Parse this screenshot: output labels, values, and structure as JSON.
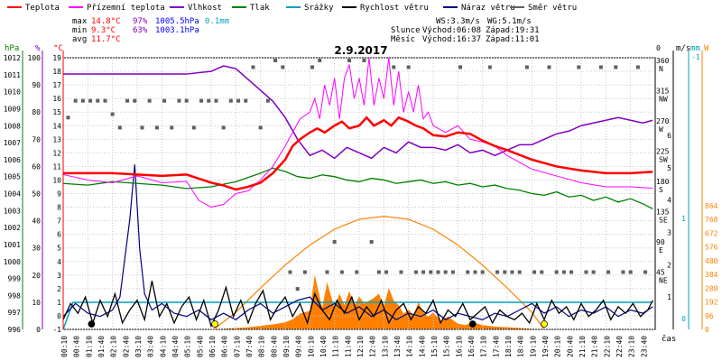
{
  "chart_data": {
    "type": "line",
    "title": "2.9.2017",
    "xlabel": "čas",
    "legend": {
      "placement": "top",
      "items": [
        {
          "label": "Teplota",
          "color": "#ff0000"
        },
        {
          "label": "Přízemní teplota",
          "color": "#ff00ff"
        },
        {
          "label": "Vlhkost",
          "color": "#8000c0"
        },
        {
          "label": "Tlak",
          "color": "#008000"
        },
        {
          "label": "Srážky",
          "color": "#00a0c0"
        },
        {
          "label": "Rychlost větru",
          "color": "#000000"
        },
        {
          "label": "Náraz větru",
          "color": "#000080"
        },
        {
          "label": "Směr větru",
          "color": "#606060"
        }
      ]
    },
    "stats": {
      "labels": [
        "max",
        "min",
        "avg"
      ],
      "temp": [
        "14.8°C",
        "9.3°C",
        "11.7°C"
      ],
      "hum": [
        "97%",
        "63%",
        ""
      ],
      "press": [
        "1005.5hPa",
        "1003.1hPa",
        ""
      ],
      "rain": [
        "0.1mm",
        "",
        ""
      ]
    },
    "wind": {
      "ws": "WS:3.3m/s",
      "wg": "WG:5.1m/s"
    },
    "sun": {
      "label": "Slunce",
      "rise": "Východ:06:08",
      "set": "Západ:19:31"
    },
    "moon": {
      "label": "Měsíc",
      "rise": "Východ:16:37",
      "set": "Západ:11:01"
    },
    "axes": {
      "left_units": [
        "hPa",
        "%",
        "°C"
      ],
      "pressure_ticks": [
        "1012",
        "1011",
        "1010",
        "1009",
        "1008",
        "1007",
        "1006",
        "1005",
        "1004",
        "1003",
        "1002",
        "1001",
        "1000",
        "999",
        "998",
        "997",
        "996"
      ],
      "humidity_ticks": [
        "100",
        "90",
        "80",
        "70",
        "60",
        "50",
        "40",
        "30",
        "20",
        "10",
        "0"
      ],
      "temp_ticks": [
        "19",
        "18",
        "17",
        "16",
        "15",
        "14",
        "13",
        "12",
        "11",
        "10",
        "9",
        "8",
        "7",
        "6",
        "5",
        "4",
        "3",
        "2",
        "1",
        "0",
        "-1"
      ],
      "direction_ticks": [
        "360",
        "N",
        "315",
        "NW",
        "270",
        "W",
        "225",
        "SW",
        "180",
        "S",
        "135",
        "SE",
        "90",
        "E",
        "45",
        "NE"
      ],
      "right_units": [
        "m/s",
        "mm",
        "W"
      ],
      "wind_ticks": [
        "6",
        "5",
        "4",
        "3",
        "2",
        "1"
      ],
      "rain_ticks": [
        "1",
        "0"
      ],
      "solar_ticks": [
        "864",
        "768",
        "672",
        "576",
        "480",
        "384",
        "288",
        "192",
        "96",
        "0"
      ],
      "top_markers": [
        "0",
        "-1"
      ],
      "ylim_temp": [
        -1,
        19
      ],
      "ylim_pressure": [
        996,
        1012
      ],
      "ylim_humidity": [
        0,
        100
      ],
      "ylim_wind": [
        0,
        6
      ],
      "ylim_solar": [
        0,
        864
      ],
      "grid": true
    },
    "time_labels": [
      "00:10",
      "00:40",
      "01:10",
      "01:40",
      "02:10",
      "02:40",
      "03:10",
      "03:40",
      "04:10",
      "04:40",
      "05:10",
      "05:40",
      "06:10",
      "06:40",
      "07:10",
      "07:40",
      "08:10",
      "08:40",
      "09:10",
      "09:40",
      "10:10",
      "10:40",
      "11:10",
      "11:40",
      "12:10",
      "12:40",
      "13:10",
      "13:40",
      "14:10",
      "14:40",
      "15:10",
      "15:40",
      "16:10",
      "16:40",
      "17:10",
      "17:40",
      "18:10",
      "18:40",
      "19:10",
      "19:40",
      "20:10",
      "20:40",
      "21:10",
      "21:40",
      "22:10",
      "22:40",
      "23:10",
      "23:40"
    ],
    "series": [
      {
        "name": "Teplota",
        "color": "#ff0000",
        "axis": "temp",
        "x": [
          0,
          1,
          2,
          3,
          4,
          5,
          6,
          6.5,
          7,
          7.5,
          8,
          8.5,
          9,
          9.3,
          9.6,
          10,
          10.3,
          10.6,
          11,
          11.3,
          11.6,
          12,
          12.3,
          12.6,
          13,
          13.3,
          13.6,
          14,
          14.3,
          14.6,
          15,
          15.5,
          16,
          16.5,
          17,
          17.5,
          18,
          19,
          20,
          21,
          22,
          23,
          23.9
        ],
        "y": [
          10.5,
          10.5,
          10.5,
          10.4,
          10.3,
          10.4,
          9.8,
          9.6,
          9.3,
          9.5,
          9.8,
          10.5,
          11.5,
          12.5,
          13.0,
          13.5,
          13.8,
          13.5,
          14.0,
          14.3,
          13.8,
          14.0,
          14.6,
          14.0,
          14.4,
          14.0,
          14.6,
          14.3,
          14.0,
          13.8,
          13.3,
          13.2,
          13.5,
          13.4,
          12.9,
          12.5,
          12.2,
          11.5,
          11.0,
          10.7,
          10.5,
          10.5,
          10.6
        ]
      },
      {
        "name": "Přízemní teplota",
        "color": "#ff00ff",
        "axis": "temp",
        "x": [
          0,
          1,
          2,
          3,
          4,
          5,
          5.5,
          6,
          6.5,
          7,
          7.5,
          8,
          8.5,
          9,
          9.3,
          9.6,
          10,
          10.2,
          10.4,
          10.6,
          10.8,
          11,
          11.2,
          11.4,
          11.6,
          11.8,
          12,
          12.2,
          12.4,
          12.6,
          12.8,
          13,
          13.2,
          13.4,
          13.6,
          13.8,
          14,
          14.2,
          14.4,
          14.6,
          14.8,
          15,
          15.5,
          16,
          16.5,
          17,
          17.5,
          18,
          19,
          20,
          21,
          22,
          23,
          23.9
        ],
        "y": [
          10.4,
          10.0,
          9.8,
          10.3,
          9.8,
          9.9,
          8.5,
          8.0,
          8.2,
          9.0,
          9.2,
          10.0,
          11.0,
          12.5,
          13.5,
          14.5,
          15.0,
          16.0,
          14.5,
          17.0,
          15.5,
          17.5,
          14.5,
          17.5,
          18.5,
          16.0,
          17.5,
          15.5,
          19.0,
          15.5,
          17.5,
          16.0,
          19.0,
          15.5,
          18.0,
          15.0,
          16.5,
          15.0,
          17.0,
          14.5,
          15.0,
          14.0,
          13.5,
          14.0,
          13.0,
          12.8,
          12.5,
          11.8,
          10.8,
          10.3,
          9.8,
          9.5,
          9.5,
          9.4
        ]
      },
      {
        "name": "Vlhkost",
        "color": "#8000c0",
        "axis": "humidity",
        "x": [
          0,
          1,
          2,
          3,
          4,
          5,
          6,
          6.5,
          7,
          7.5,
          8,
          8.5,
          9,
          9.5,
          10,
          10.5,
          11,
          11.5,
          12,
          12.5,
          13,
          13.5,
          14,
          14.5,
          15,
          15.5,
          16,
          16.5,
          17,
          17.5,
          18,
          18.5,
          19,
          19.5,
          20,
          20.5,
          21,
          21.5,
          22,
          22.5,
          23,
          23.5,
          23.9
        ],
        "y": [
          94,
          94,
          94,
          94,
          94,
          94,
          95,
          97,
          96,
          92,
          88,
          84,
          78,
          70,
          64,
          66,
          63,
          67,
          65,
          63,
          67,
          65,
          69,
          67,
          67,
          66,
          68,
          65,
          66,
          64,
          66,
          68,
          68,
          70,
          72,
          73,
          75,
          76,
          77,
          78,
          77,
          76,
          77
        ]
      },
      {
        "name": "Tlak",
        "color": "#008000",
        "axis": "pressure",
        "x": [
          0,
          1,
          2,
          3,
          4,
          5,
          6,
          7,
          8,
          8.5,
          9,
          9.5,
          10,
          10.5,
          11,
          11.5,
          12,
          12.5,
          13,
          13.5,
          14,
          14.5,
          15,
          15.5,
          16,
          16.5,
          17,
          17.5,
          18,
          18.5,
          19,
          19.5,
          20,
          20.5,
          21,
          21.5,
          22,
          22.5,
          23,
          23.5,
          23.9
        ],
        "y": [
          1004.6,
          1004.5,
          1004.7,
          1004.6,
          1004.5,
          1004.3,
          1004.4,
          1004.7,
          1005.2,
          1005.5,
          1005.3,
          1005.0,
          1004.9,
          1005.1,
          1005.0,
          1004.8,
          1004.7,
          1004.9,
          1004.8,
          1004.6,
          1004.7,
          1004.8,
          1004.6,
          1004.7,
          1004.5,
          1004.6,
          1004.4,
          1004.5,
          1004.3,
          1004.2,
          1004.0,
          1003.9,
          1004.1,
          1003.8,
          1003.9,
          1003.6,
          1003.8,
          1003.5,
          1003.7,
          1003.4,
          1003.1
        ]
      },
      {
        "name": "Náraz větru",
        "color": "#000080",
        "axis": "wind",
        "x": [
          0,
          0.5,
          1,
          1.5,
          2,
          2.3,
          2.5,
          2.7,
          2.9,
          3.1,
          3.3,
          3.6,
          4,
          4.5,
          5,
          5.5,
          6,
          6.5,
          7,
          7.5,
          8,
          8.5,
          9,
          9.5,
          10,
          10.5,
          11,
          11.5,
          12,
          12.5,
          13,
          13.5,
          14,
          14.5,
          15,
          15.5,
          16,
          16.5,
          17,
          17.5,
          18,
          18.5,
          19,
          19.5,
          20,
          20.5,
          21,
          21.5,
          22,
          22.5,
          23,
          23.5,
          23.9
        ],
        "y": [
          0.4,
          0.8,
          0.5,
          0.4,
          0.6,
          1.0,
          2.2,
          3.4,
          5.1,
          2.5,
          1.1,
          0.6,
          0.8,
          0.5,
          0.4,
          0.6,
          0.3,
          0.5,
          0.3,
          0.6,
          0.8,
          0.5,
          0.7,
          0.9,
          1.0,
          0.6,
          0.8,
          0.5,
          0.7,
          0.4,
          0.6,
          0.3,
          0.5,
          0.4,
          0.6,
          0.3,
          0.5,
          0.4,
          0.3,
          0.5,
          0.4,
          0.6,
          0.8,
          0.5,
          0.7,
          0.4,
          0.6,
          0.5,
          0.7,
          0.4,
          0.6,
          0.5,
          0.7
        ]
      },
      {
        "name": "Rychlost větru",
        "color": "#000000",
        "axis": "wind",
        "x": [
          0,
          0.3,
          0.6,
          0.9,
          1.2,
          1.5,
          1.8,
          2.1,
          2.4,
          2.7,
          3.0,
          3.3,
          3.6,
          3.9,
          4.2,
          4.5,
          4.8,
          5.1,
          5.4,
          5.7,
          6.0,
          6.3,
          6.6,
          6.9,
          7.2,
          7.5,
          7.8,
          8.1,
          8.4,
          8.7,
          9.0,
          9.3,
          9.6,
          9.9,
          10.2,
          10.5,
          10.8,
          11.1,
          11.4,
          11.7,
          12.0,
          12.3,
          12.6,
          12.9,
          13.2,
          13.5,
          13.8,
          14.1,
          14.4,
          14.7,
          15.0,
          15.3,
          15.6,
          15.9,
          16.2,
          16.5,
          16.8,
          17.1,
          17.4,
          17.7,
          18.0,
          18.3,
          18.6,
          18.9,
          19.2,
          19.5,
          19.8,
          20.1,
          20.4,
          20.7,
          21.0,
          21.3,
          21.6,
          21.9,
          22.2,
          22.5,
          22.8,
          23.1,
          23.4,
          23.7,
          23.9
        ],
        "y": [
          0.3,
          0.8,
          0.5,
          1.0,
          0.2,
          0.9,
          0.4,
          1.1,
          0.2,
          0.6,
          0.9,
          0.3,
          1.5,
          0.4,
          0.8,
          0.2,
          0.7,
          1.0,
          0.3,
          0.9,
          0.1,
          0.6,
          1.3,
          0.4,
          0.9,
          0.2,
          0.8,
          1.2,
          0.3,
          0.7,
          1.0,
          0.4,
          0.8,
          0.2,
          1.1,
          0.6,
          0.3,
          0.9,
          0.5,
          1.0,
          0.3,
          0.7,
          0.4,
          0.9,
          0.2,
          0.6,
          0.8,
          0.3,
          0.7,
          0.5,
          0.9,
          0.2,
          0.6,
          0.4,
          0.8,
          0.3,
          0.5,
          0.7,
          0.2,
          0.6,
          0.4,
          0.3,
          0.5,
          0.2,
          0.8,
          0.3,
          0.9,
          0.5,
          0.7,
          0.3,
          0.8,
          0.4,
          0.6,
          0.9,
          0.3,
          0.7,
          0.5,
          0.8,
          0.4,
          0.6,
          0.9
        ]
      },
      {
        "name": "Srážky",
        "color": "#00a0c0",
        "axis": "rain",
        "x": [
          0,
          0.4,
          1.6,
          23.9
        ],
        "y": [
          0,
          0.1,
          0.1,
          0.1
        ]
      },
      {
        "name": "Solar theoretical",
        "color": "#ff8000",
        "axis": "solar",
        "x": [
          6.1,
          7,
          8,
          9,
          10,
          11,
          12,
          13,
          14,
          15,
          16,
          17,
          18,
          19,
          19.5
        ],
        "y": [
          0,
          120,
          290,
          450,
          590,
          700,
          770,
          790,
          770,
          700,
          590,
          450,
          290,
          120,
          0
        ]
      },
      {
        "name": "Solar",
        "color": "#ff8000",
        "axis": "solar",
        "x": [
          6.1,
          6.5,
          7,
          7.5,
          8,
          8.5,
          9,
          9.3,
          9.6,
          10,
          10.2,
          10.5,
          10.7,
          11,
          11.2,
          11.4,
          11.6,
          11.8,
          12,
          12.2,
          12.4,
          12.6,
          12.8,
          13,
          13.2,
          13.4,
          13.6,
          13.8,
          14,
          14.2,
          14.4,
          14.6,
          14.8,
          15,
          15.3,
          15.6,
          16,
          16.3,
          16.6,
          17,
          17.5,
          18,
          18.5,
          19,
          19.5
        ],
        "y": [
          0,
          5,
          10,
          15,
          25,
          35,
          50,
          70,
          110,
          130,
          380,
          150,
          330,
          150,
          250,
          170,
          270,
          160,
          230,
          180,
          200,
          220,
          250,
          160,
          290,
          200,
          170,
          110,
          140,
          100,
          190,
          120,
          90,
          120,
          60,
          90,
          40,
          30,
          50,
          30,
          20,
          15,
          10,
          5,
          0
        ]
      },
      {
        "name": "Směr větru",
        "color": "#606060",
        "axis": "direction",
        "x": [
          0.2,
          0.5,
          0.8,
          1.1,
          1.4,
          1.7,
          2.0,
          2.3,
          2.6,
          2.9,
          3.2,
          3.5,
          3.8,
          4.1,
          4.4,
          4.7,
          5.0,
          5.3,
          5.6,
          5.9,
          6.2,
          6.5,
          6.8,
          7.1,
          7.4,
          7.7,
          8.0,
          8.3,
          8.6,
          8.9,
          9.2,
          9.5,
          9.8,
          10.1,
          10.4,
          10.7,
          11.0,
          11.3,
          11.6,
          11.9,
          12.2,
          12.5,
          12.8,
          13.1,
          13.4,
          13.7,
          14.0,
          14.3,
          14.6,
          14.9,
          15.2,
          15.5,
          15.8,
          16.1,
          16.4,
          16.7,
          17.0,
          17.3,
          17.6,
          17.9,
          18.2,
          18.5,
          18.8,
          19.1,
          19.4,
          19.7,
          20.0,
          20.3,
          20.6,
          20.9,
          21.2,
          21.5,
          21.8,
          22.1,
          22.4,
          22.7,
          23.0,
          23.3,
          23.6
        ],
        "y": [
          275,
          300,
          300,
          300,
          300,
          300,
          280,
          260,
          300,
          300,
          260,
          300,
          260,
          300,
          260,
          300,
          300,
          260,
          300,
          300,
          300,
          260,
          300,
          300,
          300,
          350,
          260,
          300,
          360,
          350,
          45,
          20,
          45,
          350,
          360,
          45,
          90,
          45,
          360,
          45,
          360,
          90,
          45,
          45,
          350,
          45,
          350,
          45,
          45,
          45,
          45,
          45,
          45,
          350,
          45,
          45,
          45,
          350,
          45,
          45,
          45,
          45,
          350,
          45,
          45,
          350,
          45,
          45,
          45,
          350,
          45,
          45,
          350,
          45,
          350,
          45,
          45,
          350,
          45
        ]
      }
    ]
  }
}
